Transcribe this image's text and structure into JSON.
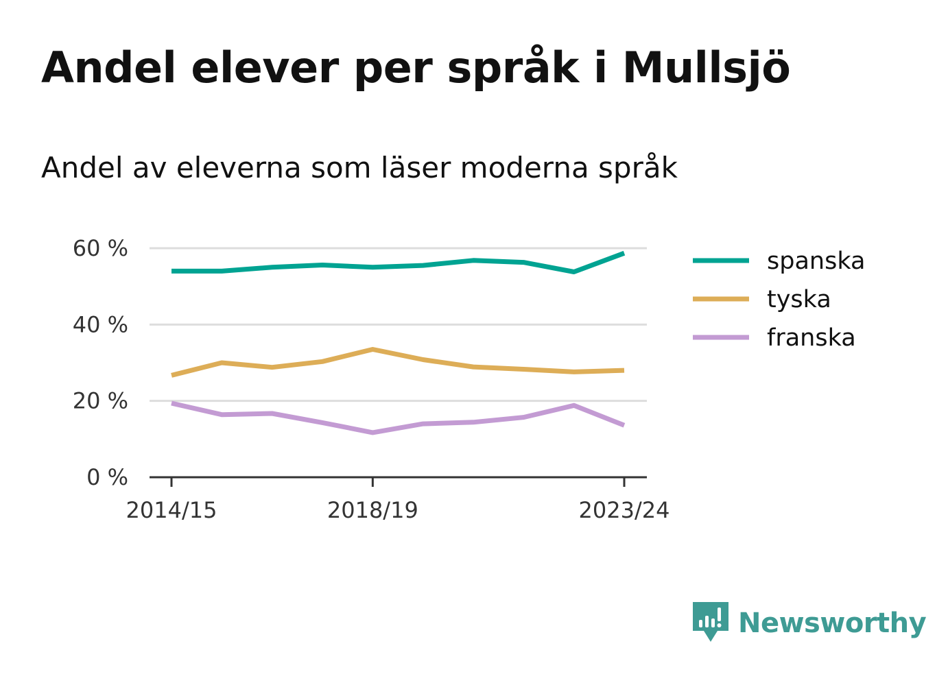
{
  "header": {
    "title": "Andel elever per språk i Mullsjö",
    "subtitle": "Andel av eleverna som läser moderna språk"
  },
  "chart_data": {
    "type": "line",
    "x": [
      "2014/15",
      "2015/16",
      "2016/17",
      "2017/18",
      "2018/19",
      "2019/20",
      "2020/21",
      "2021/22",
      "2022/23",
      "2023/24"
    ],
    "x_tick_labels": [
      "2014/15",
      "2018/19",
      "2023/24"
    ],
    "y_tick_labels": [
      "0 %",
      "20 %",
      "40 %",
      "60 %"
    ],
    "y_ticks": [
      0,
      20,
      40,
      60
    ],
    "ylim": [
      0,
      60
    ],
    "grid": true,
    "legend_position": "right",
    "series": [
      {
        "name": "spanska",
        "color": "#00a392",
        "values": [
          54.0,
          54.0,
          55.0,
          55.6,
          55.0,
          55.5,
          56.8,
          56.3,
          53.8,
          58.7
        ]
      },
      {
        "name": "tyska",
        "color": "#ddad57",
        "values": [
          26.7,
          30.0,
          28.8,
          30.3,
          33.5,
          30.8,
          28.9,
          28.3,
          27.6,
          28.0
        ]
      },
      {
        "name": "franska",
        "color": "#c39bd3",
        "values": [
          19.4,
          16.4,
          16.7,
          14.3,
          11.7,
          14.0,
          14.4,
          15.7,
          18.8,
          13.6
        ]
      }
    ]
  },
  "brand": {
    "name": "Newsworthy",
    "color": "#3e9b94"
  }
}
